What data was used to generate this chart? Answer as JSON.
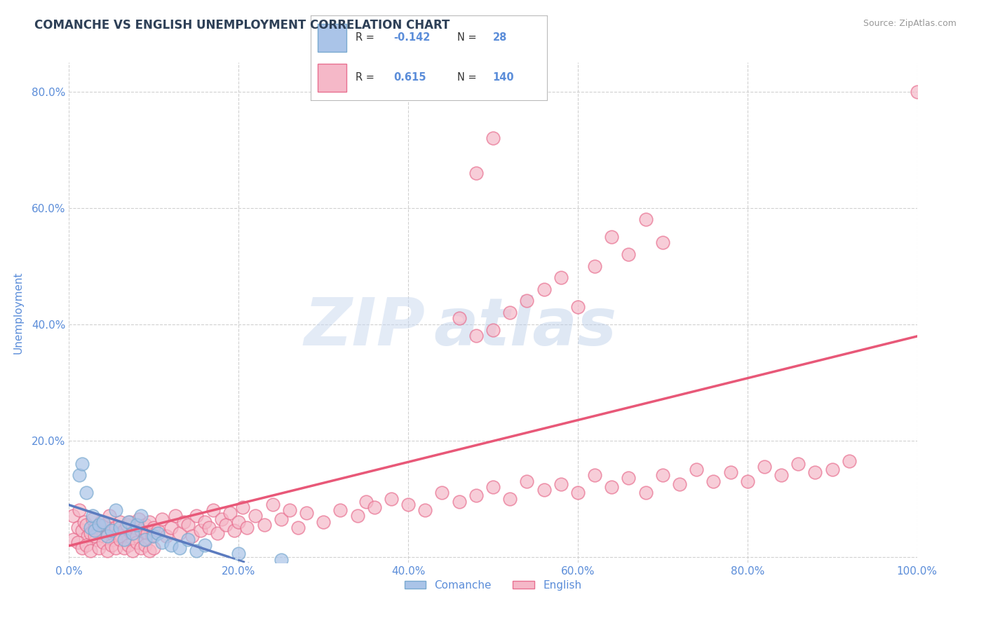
{
  "title": "COMANCHE VS ENGLISH UNEMPLOYMENT CORRELATION CHART",
  "source": "Source: ZipAtlas.com",
  "ylabel": "Unemployment",
  "xlim": [
    0,
    100
  ],
  "ylim": [
    -1,
    85
  ],
  "xticks": [
    0,
    20,
    40,
    60,
    80,
    100
  ],
  "xticklabels": [
    "0.0%",
    "20.0%",
    "40.0%",
    "60.0%",
    "80.0%",
    "100.0%"
  ],
  "yticks": [
    0,
    20,
    40,
    60,
    80
  ],
  "yticklabels": [
    "",
    "20.0%",
    "40.0%",
    "60.0%",
    "80.0%"
  ],
  "title_color": "#2e4057",
  "axis_color": "#5b8dd9",
  "comanche_color": "#aac4e8",
  "english_color": "#f5b8c8",
  "comanche_edge_color": "#7aaad0",
  "english_edge_color": "#e87090",
  "comanche_line_color": "#5b7bbf",
  "english_line_color": "#e85878",
  "grid_color": "#cccccc",
  "background_color": "#ffffff",
  "legend_R_comanche": "-0.142",
  "legend_N_comanche": "28",
  "legend_R_english": "0.615",
  "legend_N_english": "140",
  "comanche_scatter": [
    [
      1.2,
      14.0
    ],
    [
      1.5,
      16.0
    ],
    [
      2.0,
      11.0
    ],
    [
      2.5,
      5.0
    ],
    [
      2.8,
      7.0
    ],
    [
      3.0,
      4.5
    ],
    [
      3.5,
      5.5
    ],
    [
      4.0,
      6.0
    ],
    [
      4.5,
      3.5
    ],
    [
      5.0,
      4.5
    ],
    [
      5.5,
      8.0
    ],
    [
      6.0,
      5.0
    ],
    [
      6.5,
      3.0
    ],
    [
      7.0,
      6.0
    ],
    [
      7.5,
      4.0
    ],
    [
      8.0,
      5.5
    ],
    [
      8.5,
      7.0
    ],
    [
      9.0,
      3.0
    ],
    [
      10.0,
      3.5
    ],
    [
      10.5,
      4.0
    ],
    [
      11.0,
      2.5
    ],
    [
      12.0,
      2.0
    ],
    [
      13.0,
      1.5
    ],
    [
      14.0,
      3.0
    ],
    [
      15.0,
      1.0
    ],
    [
      16.0,
      2.0
    ],
    [
      20.0,
      0.5
    ],
    [
      25.0,
      -0.5
    ]
  ],
  "english_scatter": [
    [
      0.5,
      7.0
    ],
    [
      1.0,
      5.0
    ],
    [
      1.2,
      8.0
    ],
    [
      1.5,
      4.5
    ],
    [
      1.8,
      6.0
    ],
    [
      2.0,
      5.5
    ],
    [
      2.2,
      3.5
    ],
    [
      2.5,
      4.0
    ],
    [
      2.8,
      6.5
    ],
    [
      3.0,
      5.0
    ],
    [
      3.2,
      3.0
    ],
    [
      3.5,
      4.5
    ],
    [
      3.8,
      6.0
    ],
    [
      4.0,
      4.0
    ],
    [
      4.2,
      5.5
    ],
    [
      4.5,
      3.5
    ],
    [
      4.8,
      7.0
    ],
    [
      5.0,
      4.5
    ],
    [
      5.2,
      3.0
    ],
    [
      5.5,
      5.0
    ],
    [
      5.8,
      4.0
    ],
    [
      6.0,
      6.0
    ],
    [
      6.2,
      3.5
    ],
    [
      6.5,
      4.5
    ],
    [
      6.8,
      5.5
    ],
    [
      7.0,
      3.0
    ],
    [
      7.2,
      6.0
    ],
    [
      7.5,
      4.0
    ],
    [
      7.8,
      5.0
    ],
    [
      8.0,
      3.5
    ],
    [
      8.2,
      6.5
    ],
    [
      8.5,
      4.5
    ],
    [
      8.8,
      3.0
    ],
    [
      9.0,
      5.5
    ],
    [
      9.2,
      4.0
    ],
    [
      9.5,
      6.0
    ],
    [
      9.8,
      3.5
    ],
    [
      10.0,
      5.0
    ],
    [
      10.5,
      4.5
    ],
    [
      11.0,
      6.5
    ],
    [
      11.5,
      3.5
    ],
    [
      12.0,
      5.0
    ],
    [
      12.5,
      7.0
    ],
    [
      13.0,
      4.0
    ],
    [
      13.5,
      6.0
    ],
    [
      14.0,
      5.5
    ],
    [
      14.5,
      3.5
    ],
    [
      15.0,
      7.0
    ],
    [
      15.5,
      4.5
    ],
    [
      16.0,
      6.0
    ],
    [
      16.5,
      5.0
    ],
    [
      17.0,
      8.0
    ],
    [
      17.5,
      4.0
    ],
    [
      18.0,
      6.5
    ],
    [
      18.5,
      5.5
    ],
    [
      19.0,
      7.5
    ],
    [
      19.5,
      4.5
    ],
    [
      20.0,
      6.0
    ],
    [
      20.5,
      8.5
    ],
    [
      21.0,
      5.0
    ],
    [
      22.0,
      7.0
    ],
    [
      23.0,
      5.5
    ],
    [
      24.0,
      9.0
    ],
    [
      25.0,
      6.5
    ],
    [
      26.0,
      8.0
    ],
    [
      27.0,
      5.0
    ],
    [
      28.0,
      7.5
    ],
    [
      30.0,
      6.0
    ],
    [
      32.0,
      8.0
    ],
    [
      34.0,
      7.0
    ],
    [
      35.0,
      9.5
    ],
    [
      36.0,
      8.5
    ],
    [
      38.0,
      10.0
    ],
    [
      40.0,
      9.0
    ],
    [
      42.0,
      8.0
    ],
    [
      44.0,
      11.0
    ],
    [
      46.0,
      9.5
    ],
    [
      48.0,
      10.5
    ],
    [
      50.0,
      12.0
    ],
    [
      52.0,
      10.0
    ],
    [
      54.0,
      13.0
    ],
    [
      56.0,
      11.5
    ],
    [
      58.0,
      12.5
    ],
    [
      60.0,
      11.0
    ],
    [
      62.0,
      14.0
    ],
    [
      64.0,
      12.0
    ],
    [
      66.0,
      13.5
    ],
    [
      68.0,
      11.0
    ],
    [
      70.0,
      14.0
    ],
    [
      72.0,
      12.5
    ],
    [
      74.0,
      15.0
    ],
    [
      76.0,
      13.0
    ],
    [
      78.0,
      14.5
    ],
    [
      80.0,
      13.0
    ],
    [
      82.0,
      15.5
    ],
    [
      84.0,
      14.0
    ],
    [
      86.0,
      16.0
    ],
    [
      88.0,
      14.5
    ],
    [
      90.0,
      15.0
    ],
    [
      92.0,
      16.5
    ],
    [
      0.5,
      3.0
    ],
    [
      1.0,
      2.5
    ],
    [
      1.5,
      1.5
    ],
    [
      2.0,
      2.0
    ],
    [
      2.5,
      1.0
    ],
    [
      3.0,
      3.5
    ],
    [
      3.5,
      1.5
    ],
    [
      4.0,
      2.5
    ],
    [
      4.5,
      1.0
    ],
    [
      5.0,
      2.0
    ],
    [
      5.5,
      1.5
    ],
    [
      6.0,
      3.0
    ],
    [
      6.5,
      1.5
    ],
    [
      7.0,
      2.0
    ],
    [
      7.5,
      1.0
    ],
    [
      8.0,
      2.5
    ],
    [
      8.5,
      1.5
    ],
    [
      9.0,
      2.0
    ],
    [
      9.5,
      1.0
    ],
    [
      10.0,
      1.5
    ],
    [
      46.0,
      41.0
    ],
    [
      48.0,
      38.0
    ],
    [
      50.0,
      39.0
    ],
    [
      52.0,
      42.0
    ],
    [
      54.0,
      44.0
    ],
    [
      56.0,
      46.0
    ],
    [
      58.0,
      48.0
    ],
    [
      60.0,
      43.0
    ],
    [
      62.0,
      50.0
    ],
    [
      64.0,
      55.0
    ],
    [
      66.0,
      52.0
    ],
    [
      68.0,
      58.0
    ],
    [
      70.0,
      54.0
    ],
    [
      100.0,
      80.0
    ],
    [
      48.0,
      66.0
    ],
    [
      50.0,
      72.0
    ]
  ]
}
